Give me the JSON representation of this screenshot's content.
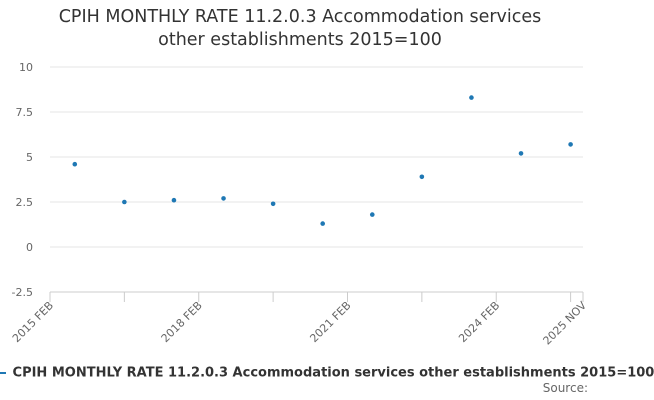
{
  "chart_data": {
    "type": "scatter",
    "title": "CPIH MONTHLY RATE 11.2.0.3 Accommodation services other establishments 2015=100",
    "xlabel": "",
    "ylabel": "",
    "x_tick_labels": [
      "2015 FEB",
      "2018 FEB",
      "2021 FEB",
      "2024 FEB",
      "2025 NOV"
    ],
    "y_ticks": [
      "10",
      "7.5",
      "5",
      "2.5",
      "0",
      "-2.5"
    ],
    "ylim": [
      -2.5,
      10
    ],
    "xlim": [
      "2015-02",
      "2025-11"
    ],
    "grid": true,
    "legend_position": "bottom",
    "series": [
      {
        "name": "CPIH MONTHLY RATE 11.2.0.3 Accommodation services other establishments 2015=100",
        "color": "#1f78b4",
        "points": [
          {
            "x": "2015-08",
            "y": 4.6
          },
          {
            "x": "2016-08",
            "y": 2.5
          },
          {
            "x": "2017-08",
            "y": 2.6
          },
          {
            "x": "2018-08",
            "y": 2.7
          },
          {
            "x": "2019-08",
            "y": 2.4
          },
          {
            "x": "2020-08",
            "y": 1.3
          },
          {
            "x": "2021-08",
            "y": 1.8
          },
          {
            "x": "2022-08",
            "y": 3.9
          },
          {
            "x": "2023-08",
            "y": 8.3
          },
          {
            "x": "2024-08",
            "y": 5.2
          },
          {
            "x": "2025-08",
            "y": 5.7
          }
        ]
      }
    ]
  },
  "legend": {
    "label": "CPIH MONTHLY RATE 11.2.0.3 Accommodation services other establishments 2015=100"
  },
  "credit": "Source:"
}
